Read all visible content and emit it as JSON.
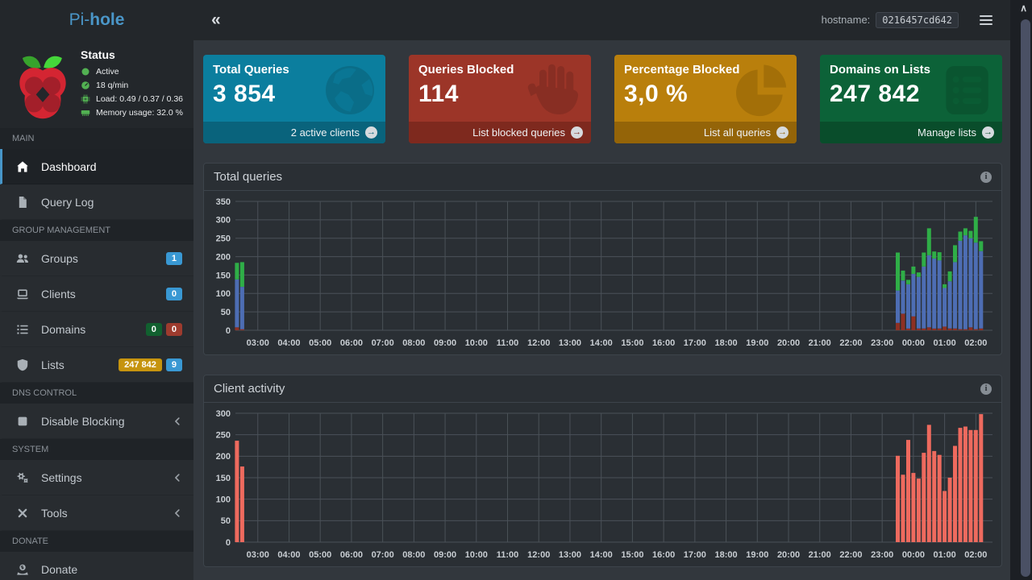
{
  "brand": {
    "pre": "Pi-",
    "bold": "hole"
  },
  "navbar": {
    "collapse_icon": "«",
    "hostname_label": "hostname:",
    "hostname_value": "0216457cd642"
  },
  "status": {
    "title": "Status",
    "rows": [
      {
        "icon": "circle-icon",
        "label": "Active"
      },
      {
        "icon": "gauge-icon",
        "label": "18 q/min"
      },
      {
        "icon": "chip-icon",
        "label": "Load: 0.49 / 0.37 / 0.36"
      },
      {
        "icon": "memory-icon",
        "label": "Memory usage: 32.0 %"
      }
    ]
  },
  "sidebar": {
    "sections": [
      {
        "header": "MAIN",
        "items": [
          {
            "label": "Dashboard",
            "icon": "home-icon",
            "active": true
          },
          {
            "label": "Query Log",
            "icon": "file-icon"
          }
        ]
      },
      {
        "header": "GROUP MANAGEMENT",
        "items": [
          {
            "label": "Groups",
            "icon": "users-icon",
            "badges": [
              {
                "text": "1",
                "color": "blue"
              }
            ]
          },
          {
            "label": "Clients",
            "icon": "laptop-icon",
            "badges": [
              {
                "text": "0",
                "color": "blue"
              }
            ]
          },
          {
            "label": "Domains",
            "icon": "list-icon",
            "badges": [
              {
                "text": "0",
                "color": "green"
              },
              {
                "text": "0",
                "color": "red"
              }
            ]
          },
          {
            "label": "Lists",
            "icon": "shield-icon",
            "badges": [
              {
                "text": "247 842",
                "color": "yellow"
              },
              {
                "text": "9",
                "color": "blue"
              }
            ]
          }
        ]
      },
      {
        "header": "DNS CONTROL",
        "items": [
          {
            "label": "Disable Blocking",
            "icon": "stop-icon",
            "chevron": true
          }
        ]
      },
      {
        "header": "SYSTEM",
        "items": [
          {
            "label": "Settings",
            "icon": "gears-icon",
            "chevron": true
          },
          {
            "label": "Tools",
            "icon": "tools-icon",
            "chevron": true
          }
        ]
      },
      {
        "header": "DONATE",
        "items": [
          {
            "label": "Donate",
            "icon": "donate-icon"
          }
        ]
      }
    ]
  },
  "badge_colors": {
    "blue": "#3998d3",
    "green": "#11602f",
    "red": "#9d3b2e",
    "yellow": "#c6940f"
  },
  "cards": [
    {
      "title": "Total Queries",
      "value": "3 854",
      "footer_label": "2 active clients",
      "color": "#0b7e9e",
      "footer_color": "#09637c",
      "icon": "globe-icon",
      "icon_color": "#0a6d88",
      "arrow_icon": "→"
    },
    {
      "title": "Queries Blocked",
      "value": "114",
      "footer_label": "List blocked queries",
      "color": "#9c3528",
      "footer_color": "#7e291e",
      "icon": "hand-icon",
      "icon_color": "#882e23",
      "arrow_icon": "→"
    },
    {
      "title": "Percentage Blocked",
      "value": "3,0 %",
      "footer_label": "List all queries",
      "color": "#b97f0c",
      "footer_color": "#946408",
      "icon": "pie-icon",
      "icon_color": "#a36f08",
      "arrow_icon": "→"
    },
    {
      "title": "Domains on Lists",
      "value": "247 842",
      "footer_label": "Manage lists",
      "color": "#0c6238",
      "footer_color": "#094d2b",
      "icon": "clipboard-icon",
      "icon_color": "#0a5530",
      "arrow_icon": "→"
    }
  ],
  "panels": [
    {
      "title": "Total queries",
      "info_icon": "i"
    },
    {
      "title": "Client activity",
      "info_icon": "i"
    }
  ],
  "chart_data": [
    {
      "type": "bar",
      "title": "Total queries",
      "stacked": true,
      "grid": true,
      "legend": "none",
      "ylim": [
        0,
        350
      ],
      "y_step": 50,
      "x_ticks": [
        "03:00",
        "04:00",
        "05:00",
        "06:00",
        "07:00",
        "08:00",
        "09:00",
        "10:00",
        "11:00",
        "12:00",
        "13:00",
        "14:00",
        "15:00",
        "16:00",
        "17:00",
        "18:00",
        "19:00",
        "20:00",
        "21:00",
        "22:00",
        "23:00",
        "00:00",
        "01:00",
        "02:00"
      ],
      "time_axis": {
        "start_min": 137,
        "end_min": 1592,
        "tick_start_min": 180,
        "tick_step_min": 60
      },
      "x": [
        "23:30",
        "23:40",
        "23:50",
        "00:00",
        "00:10",
        "00:20",
        "00:30",
        "00:40",
        "00:50",
        "01:00",
        "01:10",
        "01:20",
        "01:30",
        "01:40",
        "01:50",
        "02:00",
        "02:10",
        "02:20",
        "02:30"
      ],
      "series": [
        {
          "name": "Blocked",
          "color": "#8e3023",
          "values": [
            20,
            45,
            5,
            38,
            5,
            5,
            8,
            5,
            5,
            10,
            5,
            5,
            3,
            3,
            8,
            3,
            5,
            8,
            3
          ]
        },
        {
          "name": "Forwarded",
          "color": "#4d6db3",
          "values": [
            88,
            90,
            120,
            115,
            140,
            168,
            196,
            190,
            185,
            105,
            128,
            180,
            240,
            255,
            242,
            235,
            210,
            130,
            115
          ]
        },
        {
          "name": "Cached",
          "color": "#2fae47",
          "values": [
            103,
            27,
            12,
            20,
            12,
            38,
            73,
            19,
            22,
            10,
            27,
            46,
            25,
            19,
            20,
            70,
            27,
            45,
            67
          ]
        }
      ],
      "grid_color": "#4a5158",
      "axis_text_color": "#c9ced3"
    },
    {
      "type": "bar",
      "title": "Client activity",
      "stacked": false,
      "grid": true,
      "legend": "none",
      "ylim": [
        0,
        300
      ],
      "y_step": 50,
      "x_ticks": [
        "03:00",
        "04:00",
        "05:00",
        "06:00",
        "07:00",
        "08:00",
        "09:00",
        "10:00",
        "11:00",
        "12:00",
        "13:00",
        "14:00",
        "15:00",
        "16:00",
        "17:00",
        "18:00",
        "19:00",
        "20:00",
        "21:00",
        "22:00",
        "23:00",
        "00:00",
        "01:00",
        "02:00"
      ],
      "time_axis": {
        "start_min": 137,
        "end_min": 1592,
        "tick_start_min": 180,
        "tick_step_min": 60
      },
      "x": [
        "23:30",
        "23:40",
        "23:50",
        "00:00",
        "00:10",
        "00:20",
        "00:30",
        "00:40",
        "00:50",
        "01:00",
        "01:10",
        "01:20",
        "01:30",
        "01:40",
        "01:50",
        "02:00",
        "02:10",
        "02:20",
        "02:30"
      ],
      "series": [
        {
          "name": "Clients",
          "color": "#ee6a5e",
          "values": [
            201,
            157,
            238,
            161,
            148,
            208,
            273,
            212,
            203,
            119,
            150,
            224,
            266,
            269,
            261,
            261,
            298,
            236,
            176
          ]
        }
      ],
      "grid_color": "#4a5158",
      "axis_text_color": "#c9ced3"
    }
  ]
}
